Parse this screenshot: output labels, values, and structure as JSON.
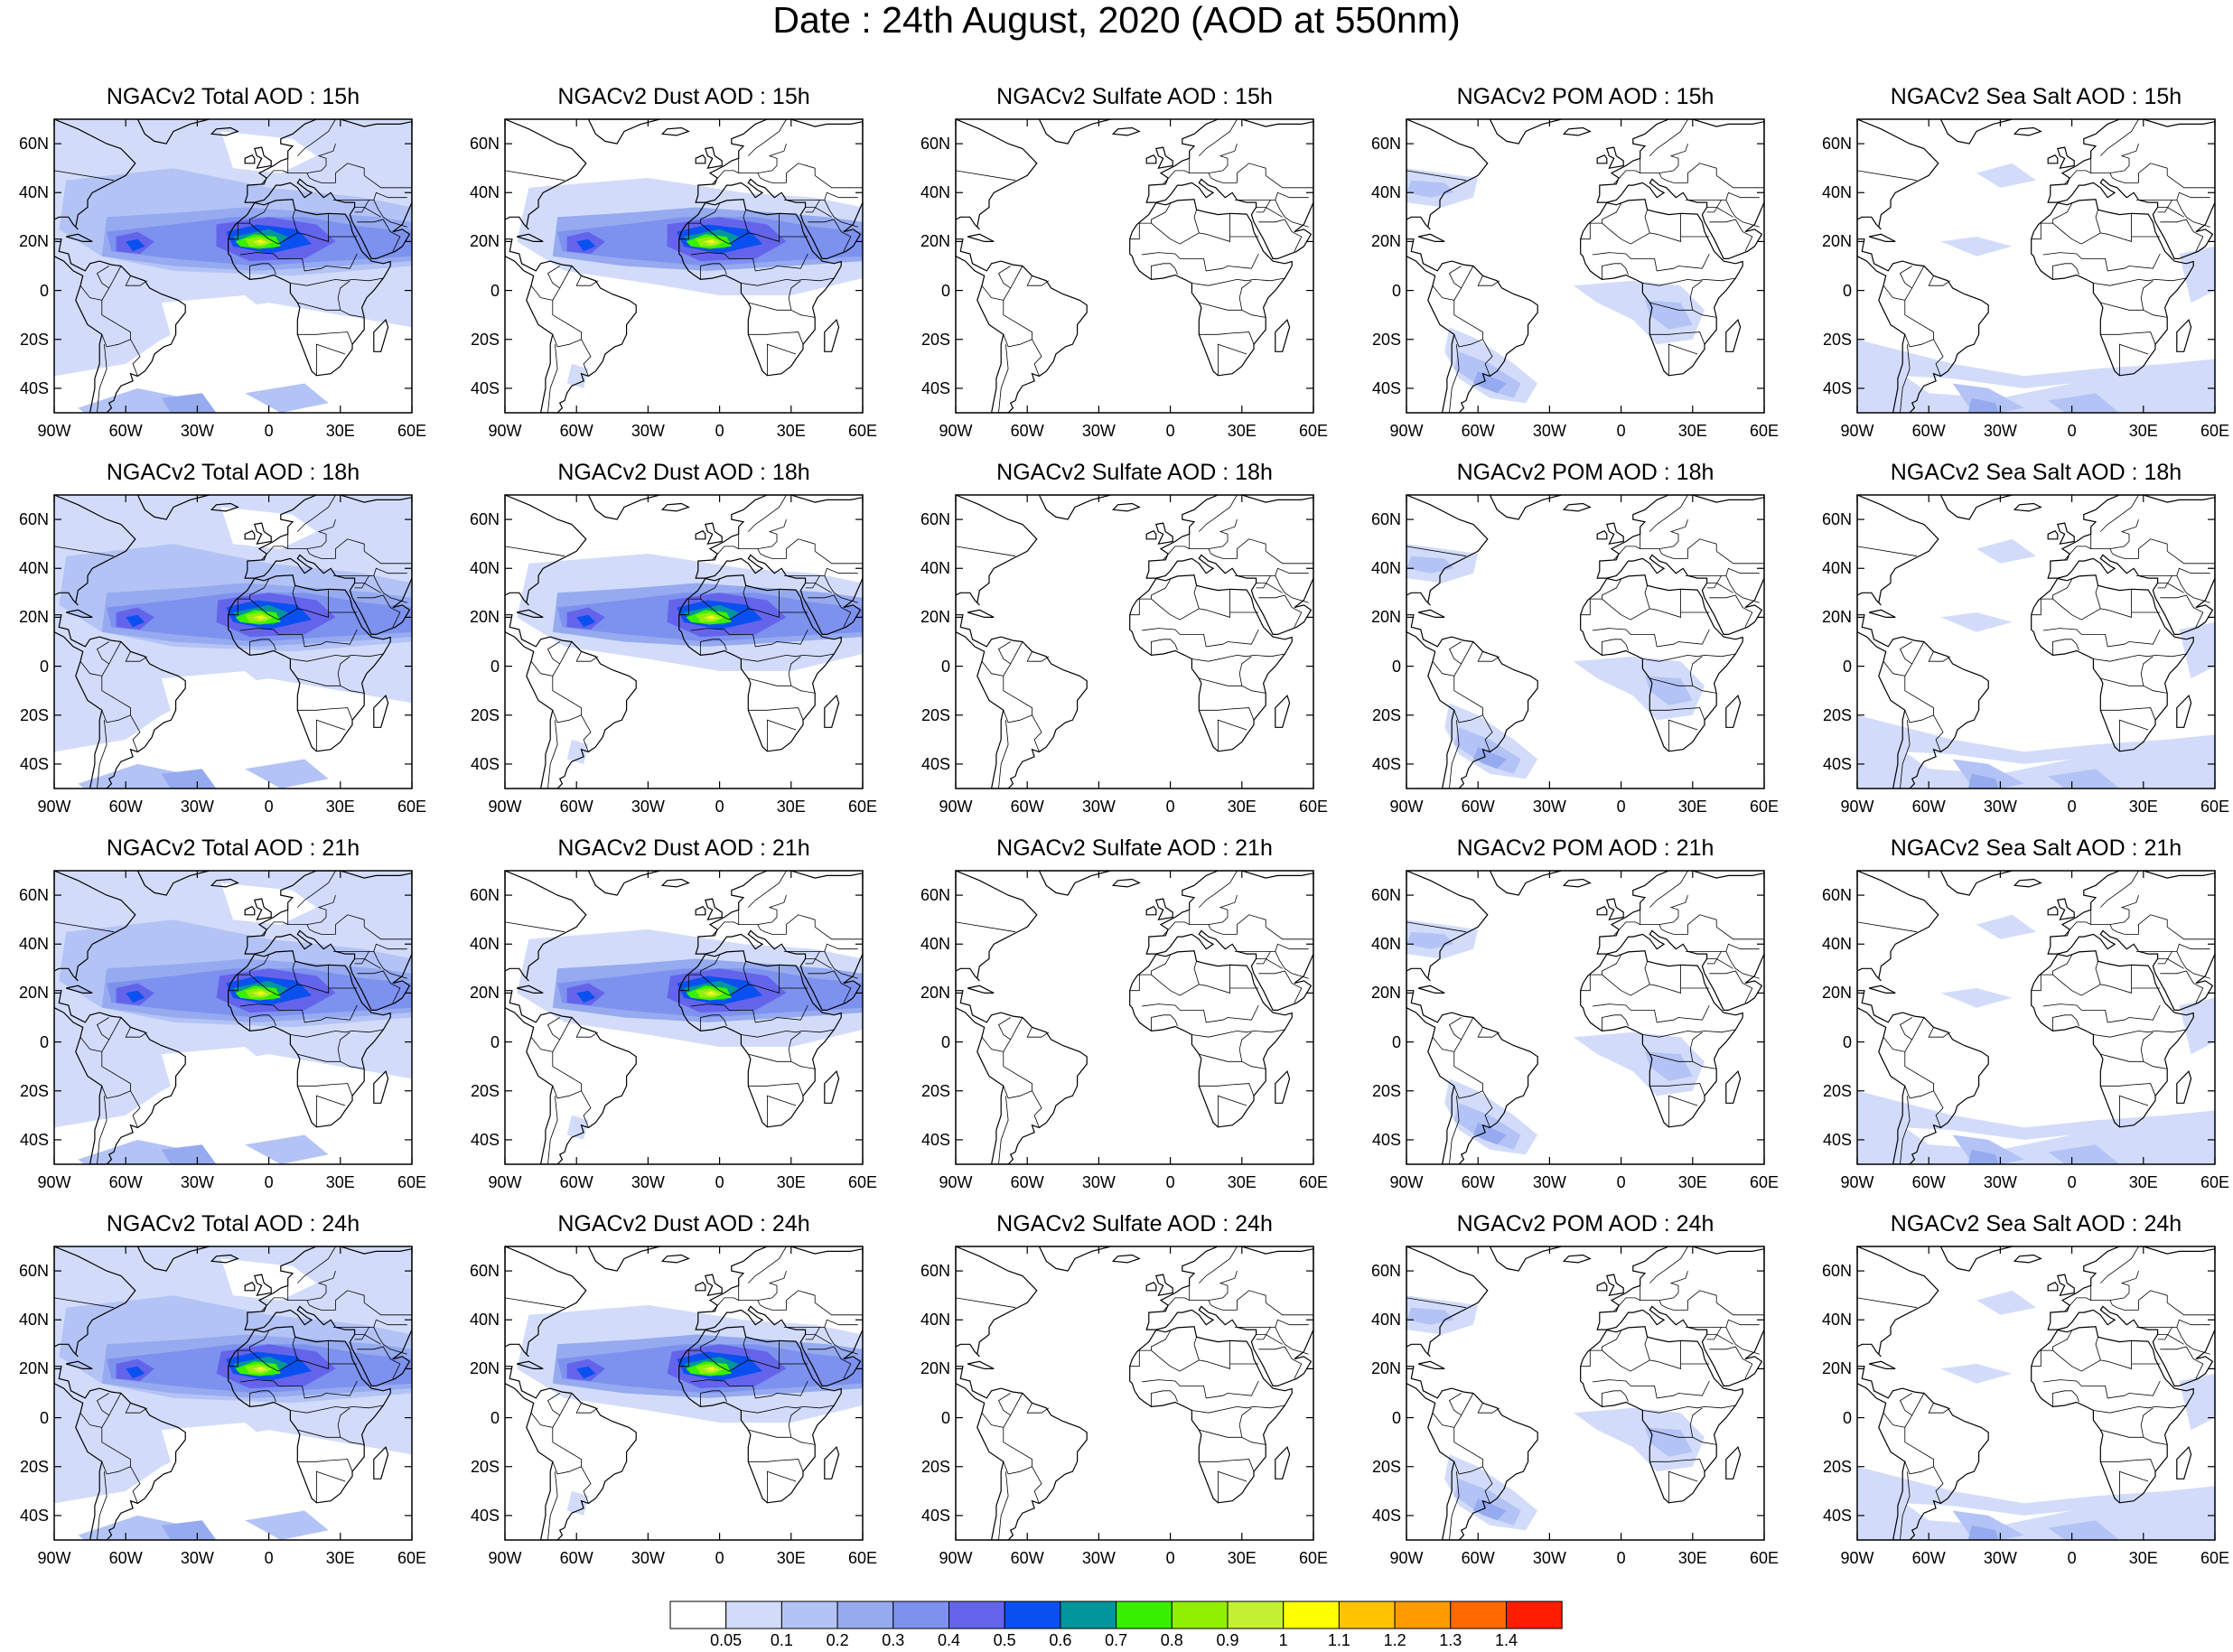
{
  "title": "Date : 24th August, 2020 (AOD at 550nm)",
  "panel_titles": [
    [
      "NGACv2 Total AOD : 15h",
      "NGACv2 Dust AOD : 15h",
      "NGACv2 Sulfate AOD : 15h",
      "NGACv2 POM AOD : 15h",
      "NGACv2 Sea Salt AOD : 15h"
    ],
    [
      "NGACv2 Total AOD : 18h",
      "NGACv2 Dust AOD : 18h",
      "NGACv2 Sulfate AOD : 18h",
      "NGACv2 POM AOD : 18h",
      "NGACv2 Sea Salt AOD : 18h"
    ],
    [
      "NGACv2 Total AOD : 21h",
      "NGACv2 Dust AOD : 21h",
      "NGACv2 Sulfate AOD : 21h",
      "NGACv2 POM AOD : 21h",
      "NGACv2 Sea Salt AOD : 21h"
    ],
    [
      "NGACv2 Total AOD : 24h",
      "NGACv2 Dust AOD : 24h",
      "NGACv2 Sulfate AOD : 24h",
      "NGACv2 POM AOD : 24h",
      "NGACv2 Sea Salt  AOD : 24h"
    ]
  ],
  "lat_ticks": [
    {
      "label": "60N",
      "lat": 60
    },
    {
      "label": "40N",
      "lat": 40
    },
    {
      "label": "20N",
      "lat": 20
    },
    {
      "label": "0",
      "lat": 0
    },
    {
      "label": "20S",
      "lat": -20
    },
    {
      "label": "40S",
      "lat": -40
    }
  ],
  "lon_ticks": [
    {
      "label": "90W",
      "lon": -90
    },
    {
      "label": "60W",
      "lon": -60
    },
    {
      "label": "30W",
      "lon": -30
    },
    {
      "label": "0",
      "lon": 0
    },
    {
      "label": "30E",
      "lon": 30
    },
    {
      "label": "60E",
      "lon": 60
    }
  ],
  "map_extent": {
    "lon": [
      -90,
      60
    ],
    "lat": [
      -50,
      70
    ]
  },
  "colorbar": {
    "labels": [
      "0.05",
      "0.1",
      "0.2",
      "0.3",
      "0.4",
      "0.5",
      "0.6",
      "0.7",
      "0.8",
      "0.9",
      "1",
      "1.1",
      "1.2",
      "1.3",
      "1.4"
    ],
    "colors": [
      "#ffffff",
      "#d2dcfa",
      "#b4c3f5",
      "#96aaf0",
      "#7d91ef",
      "#6464eb",
      "#0a50f0",
      "#00969b",
      "#37f000",
      "#91f000",
      "#c3f032",
      "#ffff00",
      "#ffc300",
      "#ff9b00",
      "#ff6900",
      "#ff1e00"
    ]
  },
  "species": [
    "Total",
    "Dust",
    "Sulfate",
    "POM",
    "Sea Salt"
  ],
  "hours": [
    "15h",
    "18h",
    "21h",
    "24h"
  ]
}
